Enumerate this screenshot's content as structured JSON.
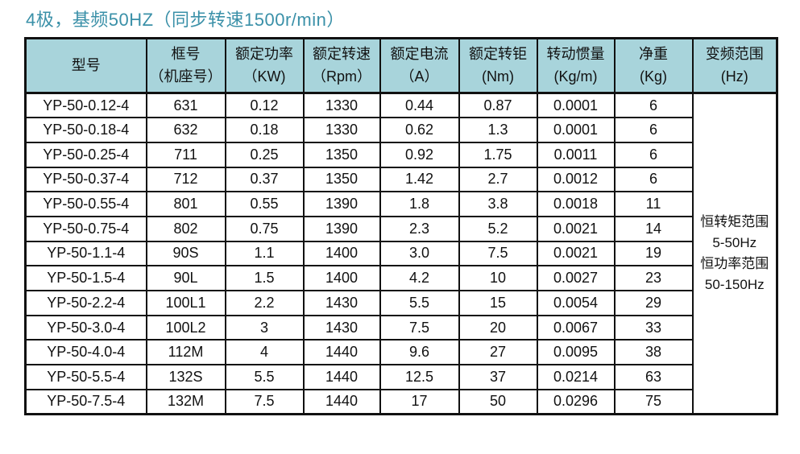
{
  "page": {
    "title": "4极，基频50HZ（同步转速1500r/min）"
  },
  "colors": {
    "title_text": "#3a90a8",
    "header_bg": "#a8d4db",
    "border": "#111111",
    "body_text": "#111111"
  },
  "table": {
    "headers": [
      {
        "line1": "型号",
        "line2": ""
      },
      {
        "line1": "框号",
        "line2": "（机座号）"
      },
      {
        "line1": "额定功率",
        "line2": "（KW)"
      },
      {
        "line1": "额定转速",
        "line2": "（Rpm）"
      },
      {
        "line1": "额定电流",
        "line2": "（A）"
      },
      {
        "line1": "额定转钜",
        "line2": "(Nm)"
      },
      {
        "line1": "转动惯量",
        "line2": "(Kg/m)"
      },
      {
        "line1": "净重",
        "line2": "(Kg)"
      },
      {
        "line1": "变频范围",
        "line2": "(Hz)"
      }
    ],
    "rows": [
      [
        "YP-50-0.12-4",
        "631",
        "0.12",
        "1330",
        "0.44",
        "0.87",
        "0.0001",
        "6"
      ],
      [
        "YP-50-0.18-4",
        "632",
        "0.18",
        "1330",
        "0.62",
        "1.3",
        "0.0001",
        "6"
      ],
      [
        "YP-50-0.25-4",
        "711",
        "0.25",
        "1350",
        "0.92",
        "1.75",
        "0.0011",
        "6"
      ],
      [
        "YP-50-0.37-4",
        "712",
        "0.37",
        "1350",
        "1.42",
        "2.7",
        "0.0012",
        "6"
      ],
      [
        "YP-50-0.55-4",
        "801",
        "0.55",
        "1390",
        "1.8",
        "3.8",
        "0.0018",
        "11"
      ],
      [
        "YP-50-0.75-4",
        "802",
        "0.75",
        "1390",
        "2.3",
        "5.2",
        "0.0021",
        "14"
      ],
      [
        "YP-50-1.1-4",
        "90S",
        "1.1",
        "1400",
        "3.0",
        "7.5",
        "0.0021",
        "19"
      ],
      [
        "YP-50-1.5-4",
        "90L",
        "1.5",
        "1400",
        "4.2",
        "10",
        "0.0027",
        "23"
      ],
      [
        "YP-50-2.2-4",
        "100L1",
        "2.2",
        "1430",
        "5.5",
        "15",
        "0.0054",
        "29"
      ],
      [
        "YP-50-3.0-4",
        "100L2",
        "3",
        "1430",
        "7.5",
        "20",
        "0.0067",
        "33"
      ],
      [
        "YP-50-4.0-4",
        "112M",
        "4",
        "1440",
        "9.6",
        "27",
        "0.0095",
        "38"
      ],
      [
        "YP-50-5.5-4",
        "132S",
        "5.5",
        "1440",
        "12.5",
        "37",
        "0.0214",
        "63"
      ],
      [
        "YP-50-7.5-4",
        "132M",
        "7.5",
        "1440",
        "17",
        "50",
        "0.0296",
        "75"
      ]
    ],
    "freq_range": {
      "lines": [
        "恒转矩范围",
        "5-50Hz",
        "恒功率范围",
        "50-150Hz"
      ]
    }
  }
}
